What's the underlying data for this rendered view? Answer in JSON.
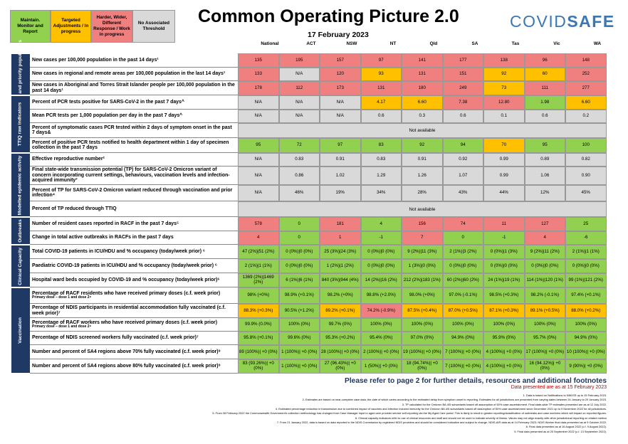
{
  "legend": {
    "green": "Maintain. Monitor and Report",
    "amber": "Targeted Adjustments / In progress",
    "red": "Harder, Wider, Different Response / Work in progress",
    "grey": "No Associated Threshold"
  },
  "title": "Common Operating Picture 2.0",
  "date": "17 February 2023",
  "brand": {
    "part1": "COVID",
    "part2": "SAFE"
  },
  "colors": {
    "green": "#92d050",
    "amber": "#ffc000",
    "red": "#f08080",
    "grey": "#d9d9d9",
    "navy": "#1f3864"
  },
  "columns": [
    "National",
    "ACT",
    "NSW",
    "NT",
    "Qld",
    "SA",
    "Tas",
    "Vic",
    "WA"
  ],
  "sections": {
    "cases": "Cases and priority populations",
    "ttiq": "TTIQ raw indicators",
    "modelled": "Modelled epidemic activity",
    "outbreaks": "Outbreaks",
    "clinical": "Clinical Capacity",
    "vaccination": "Vaccination"
  },
  "rows": [
    {
      "label": "New cases per 100,000 population in the past 14 days¹",
      "cells": [
        {
          "v": "135",
          "c": "r"
        },
        {
          "v": "195",
          "c": "r"
        },
        {
          "v": "157",
          "c": "r"
        },
        {
          "v": "97",
          "c": "r"
        },
        {
          "v": "141",
          "c": "r"
        },
        {
          "v": "177",
          "c": "r"
        },
        {
          "v": "138",
          "c": "r"
        },
        {
          "v": "96",
          "c": "r"
        },
        {
          "v": "148",
          "c": "r"
        }
      ]
    },
    {
      "label": "New cases in regional and remote areas per 100,000 population in the last 14 days¹",
      "cells": [
        {
          "v": "133",
          "c": "r"
        },
        {
          "v": "N/A",
          "c": "n"
        },
        {
          "v": "120",
          "c": "r"
        },
        {
          "v": "93",
          "c": "a"
        },
        {
          "v": "131",
          "c": "r"
        },
        {
          "v": "151",
          "c": "r"
        },
        {
          "v": "92",
          "c": "a"
        },
        {
          "v": "60",
          "c": "a"
        },
        {
          "v": "252",
          "c": "r"
        }
      ]
    },
    {
      "label": "New cases in Aboriginal and Torres Strait Islander people per 100,000 population in the past 14 days¹",
      "cells": [
        {
          "v": "178",
          "c": "r"
        },
        {
          "v": "112",
          "c": "r"
        },
        {
          "v": "173",
          "c": "r"
        },
        {
          "v": "131",
          "c": "r"
        },
        {
          "v": "180",
          "c": "r"
        },
        {
          "v": "249",
          "c": "r"
        },
        {
          "v": "73",
          "c": "a"
        },
        {
          "v": "111",
          "c": "r"
        },
        {
          "v": "277",
          "c": "r"
        }
      ]
    },
    {
      "label": "Percent of PCR tests positive for SARS-CoV-2 in the past 7 days^",
      "cells": [
        {
          "v": "N/A",
          "c": "n"
        },
        {
          "v": "N/A",
          "c": "n"
        },
        {
          "v": "N/A",
          "c": "n"
        },
        {
          "v": "4.17",
          "c": "a"
        },
        {
          "v": "6.60",
          "c": "a"
        },
        {
          "v": "7.38",
          "c": "r"
        },
        {
          "v": "12.80",
          "c": "r"
        },
        {
          "v": "1.98",
          "c": "g"
        },
        {
          "v": "6.60",
          "c": "a"
        }
      ]
    },
    {
      "label": "Mean PCR tests per 1,000 population per day in the past 7 days^",
      "cells": [
        {
          "v": "N/A",
          "c": "n"
        },
        {
          "v": "N/A",
          "c": "n"
        },
        {
          "v": "N/A",
          "c": "n"
        },
        {
          "v": "0.6",
          "c": "n"
        },
        {
          "v": "0.3",
          "c": "n"
        },
        {
          "v": "0.6",
          "c": "n"
        },
        {
          "v": "0.1",
          "c": "n"
        },
        {
          "v": "0.6",
          "c": "n"
        },
        {
          "v": "0.2",
          "c": "n"
        }
      ]
    },
    {
      "label": "Percent of symptomatic cases PCR tested within 2 days of symptom onset in the past 7 days&",
      "na": "Not available"
    },
    {
      "label": "Percent of positive PCR tests notified to health department within 1 day of specimen collection in the past 7 days",
      "cells": [
        {
          "v": "95",
          "c": "g"
        },
        {
          "v": "72",
          "c": "g"
        },
        {
          "v": "97",
          "c": "g"
        },
        {
          "v": "83",
          "c": "g"
        },
        {
          "v": "92",
          "c": "g"
        },
        {
          "v": "94",
          "c": "g"
        },
        {
          "v": "70",
          "c": "a"
        },
        {
          "v": "95",
          "c": "g"
        },
        {
          "v": "100",
          "c": "g"
        }
      ]
    },
    {
      "label": "Effective reproductive number²",
      "cells": [
        {
          "v": "N/A",
          "c": "n"
        },
        {
          "v": "0.83",
          "c": "n"
        },
        {
          "v": "0.91",
          "c": "n"
        },
        {
          "v": "0.83",
          "c": "n"
        },
        {
          "v": "0.91",
          "c": "n"
        },
        {
          "v": "0.92",
          "c": "n"
        },
        {
          "v": "0.99",
          "c": "n"
        },
        {
          "v": "0.89",
          "c": "n"
        },
        {
          "v": "0.82",
          "c": "n"
        }
      ]
    },
    {
      "label": "Final state-wide transmission potential (TP) for SARS-CoV-2 Omicron variant of concern incorporating current settings, behaviours, vaccination levels and infection-acquired immunity³",
      "cells": [
        {
          "v": "N/A",
          "c": "n"
        },
        {
          "v": "0.86",
          "c": "n"
        },
        {
          "v": "1.02",
          "c": "n"
        },
        {
          "v": "1.29",
          "c": "n"
        },
        {
          "v": "1.26",
          "c": "n"
        },
        {
          "v": "1.07",
          "c": "n"
        },
        {
          "v": "0.99",
          "c": "n"
        },
        {
          "v": "1.06",
          "c": "n"
        },
        {
          "v": "0.90",
          "c": "n"
        }
      ]
    },
    {
      "label": "Percent of TP for SARS-CoV-2 Omicron variant reduced through vaccination and prior infection⁴",
      "cells": [
        {
          "v": "N/A",
          "c": "n"
        },
        {
          "v": "46%",
          "c": "n"
        },
        {
          "v": "19%",
          "c": "n"
        },
        {
          "v": "34%",
          "c": "n"
        },
        {
          "v": "28%",
          "c": "n"
        },
        {
          "v": "43%",
          "c": "n"
        },
        {
          "v": "44%",
          "c": "n"
        },
        {
          "v": "12%",
          "c": "n"
        },
        {
          "v": "45%",
          "c": "n"
        }
      ]
    },
    {
      "label": "Percent of TP reduced through TTIQ",
      "na": "Not available"
    },
    {
      "label": "Number of resident cases reported in RACF in the past 7 days⁵",
      "cells": [
        {
          "v": "578",
          "c": "r"
        },
        {
          "v": "0",
          "c": "g"
        },
        {
          "v": "181",
          "c": "r"
        },
        {
          "v": "4",
          "c": "g"
        },
        {
          "v": "156",
          "c": "r"
        },
        {
          "v": "74",
          "c": "r"
        },
        {
          "v": "11",
          "c": "r"
        },
        {
          "v": "127",
          "c": "r"
        },
        {
          "v": "25",
          "c": "g"
        }
      ]
    },
    {
      "label": "Change in total active outbreaks in RACFs in the past 7 days",
      "cells": [
        {
          "v": "4",
          "c": "r"
        },
        {
          "v": "0",
          "c": "g"
        },
        {
          "v": "1",
          "c": "r"
        },
        {
          "v": "-1",
          "c": "g"
        },
        {
          "v": "7",
          "c": "r"
        },
        {
          "v": "0",
          "c": "g"
        },
        {
          "v": "-1",
          "c": "g"
        },
        {
          "v": "4",
          "c": "r"
        },
        {
          "v": "-6",
          "c": "g"
        }
      ]
    },
    {
      "label": "Total COVID-19 patients in ICU/HDU and % occupancy (today/week prior) ⁶",
      "cells": [
        {
          "v": "47 (2%)|51 (2%)",
          "c": "g"
        },
        {
          "v": "0 (0%)|0 (0%)",
          "c": "g"
        },
        {
          "v": "25 (3%)|24 (3%)",
          "c": "g"
        },
        {
          "v": "0 (0%)|0 (0%)",
          "c": "g"
        },
        {
          "v": "9 (2%)|11 (3%)",
          "c": "g"
        },
        {
          "v": "2 (1%)|3 (2%)",
          "c": "g"
        },
        {
          "v": "0 (0%)|1 (3%)",
          "c": "g"
        },
        {
          "v": "9 (2%)|11 (2%)",
          "c": "g"
        },
        {
          "v": "2 (1%)|1 (1%)",
          "c": "g"
        }
      ]
    },
    {
      "label": "Paediatric COVID-19 patients in ICU/HDU and % occupancy (today/week prior) ⁶",
      "cells": [
        {
          "v": "2 (1%)|1 (1%)",
          "c": "g"
        },
        {
          "v": "0 (0%)|0 (0%)",
          "c": "g"
        },
        {
          "v": "1 (2%)|1 (2%)",
          "c": "g"
        },
        {
          "v": "0 (0%)|0 (0%)",
          "c": "g"
        },
        {
          "v": "1 (3%)|0 (0%)",
          "c": "g"
        },
        {
          "v": "0 (0%)|0 (0%)",
          "c": "g"
        },
        {
          "v": "0 (0%)|0 (0%)",
          "c": "g"
        },
        {
          "v": "0 (0%)|0 (0%)",
          "c": "g"
        },
        {
          "v": "0 (0%)|0 (0%)",
          "c": "g"
        }
      ]
    },
    {
      "label": "Hospital ward beds occupied by COVID-19 and % occupancy (today/week prior)⁶",
      "cells": [
        {
          "v": "1369 (2%)|1469 (2%)",
          "c": "g"
        },
        {
          "v": "6 (1%)|6 (1%)",
          "c": "g"
        },
        {
          "v": "840 (3%)|944 (4%)",
          "c": "g"
        },
        {
          "v": "14 (2%)|16 (2%)",
          "c": "g"
        },
        {
          "v": "212 (2%)|183 (1%)",
          "c": "g"
        },
        {
          "v": "60 (2%)|60 (2%)",
          "c": "g"
        },
        {
          "v": "24 (1%)|19 (1%)",
          "c": "g"
        },
        {
          "v": "114 (1%)|120 (1%)",
          "c": "g"
        },
        {
          "v": "99 (1%)|121 (2%)",
          "c": "g"
        }
      ]
    },
    {
      "label": "Percentage of RACF residents who have received primary doses (c.f. week prior)",
      "sub": "Primary dose – dose 1 and dose 2⁸",
      "cells": [
        {
          "v": "98% (+0%)",
          "c": "g"
        },
        {
          "v": "98.9% (+0.1%)",
          "c": "g"
        },
        {
          "v": "98.2% (+0%)",
          "c": "g"
        },
        {
          "v": "98.8% (+2.0%)",
          "c": "g"
        },
        {
          "v": "98.0% (+0%)",
          "c": "g"
        },
        {
          "v": "97.0% (-0.1%)",
          "c": "g"
        },
        {
          "v": "98.5% (+0.3%)",
          "c": "g"
        },
        {
          "v": "98.2% (-0.1%)",
          "c": "g"
        },
        {
          "v": "97.4% (+0.1%)",
          "c": "g"
        }
      ]
    },
    {
      "label": "Percentage of NDIS participants in residential accommodation fully vaccinated (c.f. week prior)⁷",
      "cells": [
        {
          "v": "88.3% (+0.3%)",
          "c": "a"
        },
        {
          "v": "90.5% (+1.2%)",
          "c": "g"
        },
        {
          "v": "89.2% (+0.1%)",
          "c": "a"
        },
        {
          "v": "74.2% (-0.9%)",
          "c": "r"
        },
        {
          "v": "87.5% (+0.4%)",
          "c": "a"
        },
        {
          "v": "87.0% (+0.5%)",
          "c": "a"
        },
        {
          "v": "87.1% (+0.3%)",
          "c": "a"
        },
        {
          "v": "89.1% (+0.5%)",
          "c": "a"
        },
        {
          "v": "88.0% (+0.2%)",
          "c": "a"
        }
      ]
    },
    {
      "label": "Percentage of RACF workers who have received primary doses (c.f. week prior)",
      "sub": "Primary dose – dose 1 and dose 2⁸",
      "cells": [
        {
          "v": "99.9% (0.0%)",
          "c": "g"
        },
        {
          "v": "100% (0%)",
          "c": "g"
        },
        {
          "v": "99.7% (0%)",
          "c": "g"
        },
        {
          "v": "100% (0%)",
          "c": "g"
        },
        {
          "v": "100% (0%)",
          "c": "g"
        },
        {
          "v": "100% (0%)",
          "c": "g"
        },
        {
          "v": "100% (0%)",
          "c": "g"
        },
        {
          "v": "100% (0%)",
          "c": "g"
        },
        {
          "v": "100% (0%)",
          "c": "g"
        }
      ]
    },
    {
      "label": "Percentage of NDIS screened workers fully vaccinated (c.f. week prior)⁷",
      "cells": [
        {
          "v": "95.8% (+0.1%)",
          "c": "g"
        },
        {
          "v": "99.6% (0%)",
          "c": "g"
        },
        {
          "v": "95.3% (+0.2%)",
          "c": "g"
        },
        {
          "v": "95.4% (0%)",
          "c": "g"
        },
        {
          "v": "97.0% (0%)",
          "c": "g"
        },
        {
          "v": "94.9% (0%)",
          "c": "g"
        },
        {
          "v": "95.9% (0%)",
          "c": "g"
        },
        {
          "v": "95.7% (0%)",
          "c": "g"
        },
        {
          "v": "94.9% (0%)",
          "c": "g"
        }
      ]
    },
    {
      "label": "Number and percent of SA4 regions above 70% fully vaccinated (c.f. week prior)⁹",
      "cells": [
        {
          "v": "89 (100%)| +0 (0%)",
          "c": "g"
        },
        {
          "v": "1 (100%)| +0 (0%)",
          "c": "g"
        },
        {
          "v": "28 (100%)| +0 (0%)",
          "c": "g"
        },
        {
          "v": "2 (100%)| +0 (0%)",
          "c": "g"
        },
        {
          "v": "19 (100%)| +0 (0%)",
          "c": "g"
        },
        {
          "v": "7 (100%)| +0 (0%)",
          "c": "g"
        },
        {
          "v": "4 (100%)| +0 (0%)",
          "c": "g"
        },
        {
          "v": "17 (100%)| +0 (0%)",
          "c": "g"
        },
        {
          "v": "10 (100%)| +0 (0%)",
          "c": "g"
        }
      ]
    },
    {
      "label": "Number and percent of SA4 regions above 80% fully vaccinated (c.f. week prior)⁹",
      "cells": [
        {
          "v": "83 (93.26%)| +0 (0%)",
          "c": "g"
        },
        {
          "v": "1 (100%)| +0 (0%)",
          "c": "g"
        },
        {
          "v": "27 (96.43%)| +0 (0%)",
          "c": "g"
        },
        {
          "v": "1 (50%)| +0 (0%)",
          "c": "g"
        },
        {
          "v": "18 (94.74%)| +0 (0%)",
          "c": "g"
        },
        {
          "v": "7 (100%)| +0 (0%)",
          "c": "g"
        },
        {
          "v": "4 (100%)| +0 (0%)",
          "c": "g"
        },
        {
          "v": "16 (94.12%)| +0 (0%)",
          "c": "g"
        },
        {
          "v": "9 (90%)| +0 (0%)",
          "c": "g"
        }
      ]
    }
  ],
  "footer": {
    "refer": "Please refer to page 2 for further details, resources and additional footnotes",
    "presented": "Data presented are as at 15 February 2023"
  },
  "notes": [
    "1.    Data is based on Notifications to NNDSS up to 15 February 2023.",
    "2. Estimates are based on near-complete case data, the date of which varies according to the estimated delay from symptom onset to reporting. Estimates for all jurisdictions are presented from varying dates between 24 January to 29 January 2023.",
    "3. TP calculated for the Omicron BA.4/5 subvariants based off assumption of 50% case ascertainment. Final state-wide TP estimates presented are as at 12 July 2022.",
    "4. Estimated percentage reduction in transmission due to combined impact of vaccines and infection induced immunity for the Omicron BA.4/5 subvariants based off assumption of 50% case ascertainment since December 2021 up to 9 November 2022 for all jurisdictions.",
    "5. From 28 February 2022 the Commonwealth Government's collection methodology has changed from Case Manager input to aged care provider service self-reporting via the My Aged Care portal. This is likely to result in greater reporting/classification of outbreaks and case numbers which will impact on reported figures.",
    "6. Clinical capacity indicators refer to use of clinical resources and staff and should not be used to indicate severity of illness. Values may not align exactly with other jurisdictional reporting on related metrics",
    "7. From 21 January 2022, data is based on data reported to the NDIS Commission by registered NDIS providers and should be considered indicative and subject to change. NDIS-AIR data as at 14 February 2023. NDIS Worker final data presented as at 9 October 2022.",
    "8. Final data presented as at 16 August 2022 (c.f. 9 August 2022).",
    "9. Final data presented as at 20 September 2022 (c.f. 13 September 2022)."
  ]
}
